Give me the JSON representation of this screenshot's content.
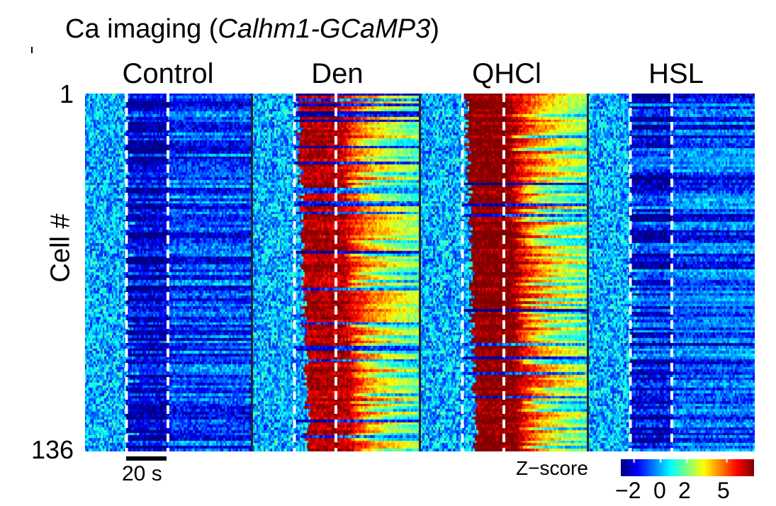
{
  "title_prefix": "Ca imaging (",
  "title_italic": "Calhm1-GCaMP3",
  "title_suffix": ")",
  "chart_data": {
    "type": "heatmap",
    "conditions": [
      "Control",
      "Den",
      "QHCl",
      "HSL"
    ],
    "y_axis": {
      "label": "Cell #",
      "ticks": [
        "1",
        "136"
      ],
      "n_cells": 136
    },
    "time_scalebar": "20 s",
    "stimulus_window_s": 20,
    "colorbar": {
      "label": "Z−score",
      "ticks": [
        "−2",
        "0",
        "2",
        "5"
      ],
      "range": [
        -3,
        7
      ],
      "colormap": "jet"
    },
    "panel_response": {
      "Control": {
        "mean_z_stim": -1.5,
        "responders_fraction": 0.1
      },
      "Den": {
        "mean_z_stim": 6.5,
        "responders_fraction": 0.85
      },
      "QHCl": {
        "mean_z_stim": 7.0,
        "responders_fraction": 0.95
      },
      "HSL": {
        "mean_z_stim": -0.5,
        "responders_fraction": 0.25
      }
    },
    "colors": {
      "stim_marker": "#ffffff",
      "panel_divider": "#1a2a2a",
      "saturated": "#800000"
    }
  }
}
